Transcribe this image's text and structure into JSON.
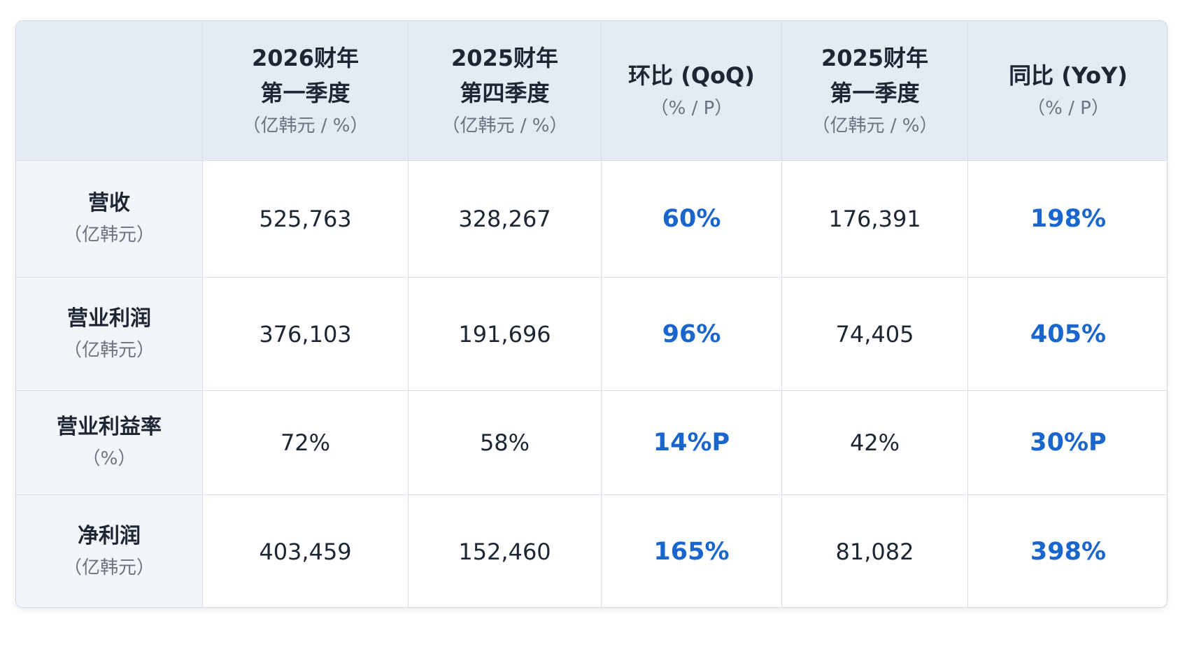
{
  "table": {
    "header": [
      {
        "lines": [
          "2026财年",
          "第一季度"
        ],
        "unit": "（亿韩元 / %）"
      },
      {
        "lines": [
          "2025财年",
          "第四季度"
        ],
        "unit": "（亿韩元 / %）"
      },
      {
        "lines": [
          "环比 (QoQ)"
        ],
        "unit": "（% / P）"
      },
      {
        "lines": [
          "2025财年",
          "第一季度"
        ],
        "unit": "（亿韩元 / %）"
      },
      {
        "lines": [
          "同比 (YoY)"
        ],
        "unit": "（% / P）"
      }
    ],
    "rows": [
      {
        "label": "营收",
        "unit": "（亿韩元）",
        "cells": [
          "525,763",
          "328,267",
          "60%",
          "176,391",
          "198%"
        ]
      },
      {
        "label": "营业利润",
        "unit": "（亿韩元）",
        "cells": [
          "376,103",
          "191,696",
          "96%",
          "74,405",
          "405%"
        ]
      },
      {
        "label": "营业利益率",
        "unit": "（%）",
        "cells": [
          "72%",
          "58%",
          "14%P",
          "42%",
          "30%P"
        ]
      },
      {
        "label": "净利润",
        "unit": "（亿韩元）",
        "cells": [
          "403,459",
          "152,460",
          "165%",
          "81,082",
          "398%"
        ]
      }
    ]
  }
}
